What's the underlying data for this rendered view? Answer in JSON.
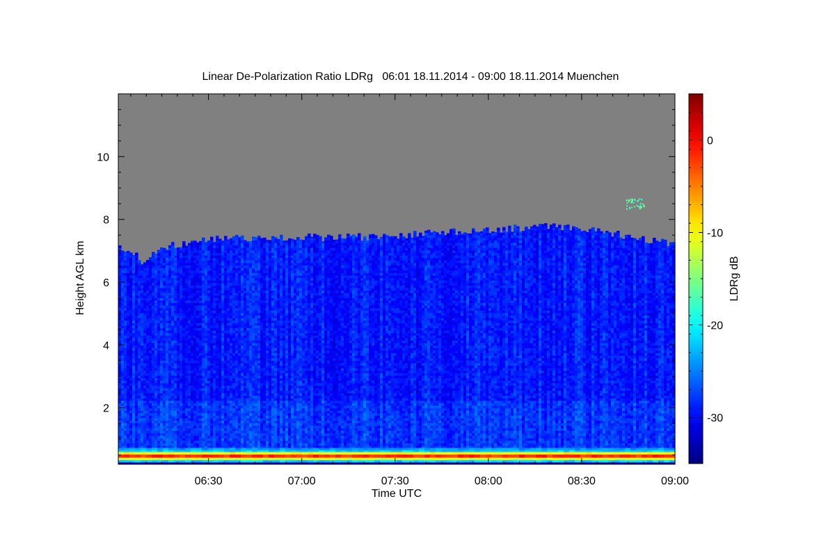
{
  "chart_data": {
    "type": "heatmap",
    "title": "Linear De-Polarization Ratio LDRg   06:01 18.11.2014 - 09:00 18.11.2014 Muenchen",
    "xlabel": "Time UTC",
    "ylabel": "Height AGL km",
    "colorbar_label": "LDRg dB",
    "x_range_minutes_utc": [
      361,
      540
    ],
    "y_range_km": [
      0.2,
      12.0
    ],
    "x_ticks": [
      {
        "minute": 390,
        "label": "06:30"
      },
      {
        "minute": 420,
        "label": "07:00"
      },
      {
        "minute": 450,
        "label": "07:30"
      },
      {
        "minute": 480,
        "label": "08:00"
      },
      {
        "minute": 510,
        "label": "08:30"
      },
      {
        "minute": 540,
        "label": "09:00"
      }
    ],
    "y_ticks": [
      {
        "value": 2,
        "label": "2"
      },
      {
        "value": 4,
        "label": "4"
      },
      {
        "value": 6,
        "label": "6"
      },
      {
        "value": 8,
        "label": "8"
      },
      {
        "value": 10,
        "label": "10"
      }
    ],
    "colorbar_range_db": [
      -35,
      5
    ],
    "colorbar_ticks": [
      {
        "value": 0,
        "label": "0"
      },
      {
        "value": -10,
        "label": "-10"
      },
      {
        "value": -20,
        "label": "-20"
      },
      {
        "value": -30,
        "label": "-30"
      }
    ],
    "colormap": "jet",
    "no_data_color": "#808080",
    "signal_top_km": [
      {
        "minute": 361,
        "km": 7.2
      },
      {
        "minute": 363,
        "km": 6.9
      },
      {
        "minute": 366,
        "km": 6.9
      },
      {
        "minute": 369,
        "km": 6.65
      },
      {
        "minute": 371,
        "km": 6.85
      },
      {
        "minute": 374,
        "km": 7.05
      },
      {
        "minute": 380,
        "km": 7.2
      },
      {
        "minute": 390,
        "km": 7.35
      },
      {
        "minute": 400,
        "km": 7.4
      },
      {
        "minute": 410,
        "km": 7.45
      },
      {
        "minute": 420,
        "km": 7.45
      },
      {
        "minute": 430,
        "km": 7.4
      },
      {
        "minute": 440,
        "km": 7.45
      },
      {
        "minute": 450,
        "km": 7.5
      },
      {
        "minute": 460,
        "km": 7.55
      },
      {
        "minute": 470,
        "km": 7.6
      },
      {
        "minute": 480,
        "km": 7.65
      },
      {
        "minute": 490,
        "km": 7.72
      },
      {
        "minute": 500,
        "km": 7.78
      },
      {
        "minute": 510,
        "km": 7.7
      },
      {
        "minute": 520,
        "km": 7.55
      },
      {
        "minute": 530,
        "km": 7.35
      },
      {
        "minute": 540,
        "km": 7.2
      }
    ],
    "typical_ldr_db": {
      "surface_layer_0_to_0_3km": -10,
      "surface_layer_core": -2,
      "aerosol_column_0_3_to_7km": -29
    },
    "isolated_echoes": [
      {
        "minute": 527,
        "km": 8.5,
        "ldr_db": -17
      }
    ]
  }
}
